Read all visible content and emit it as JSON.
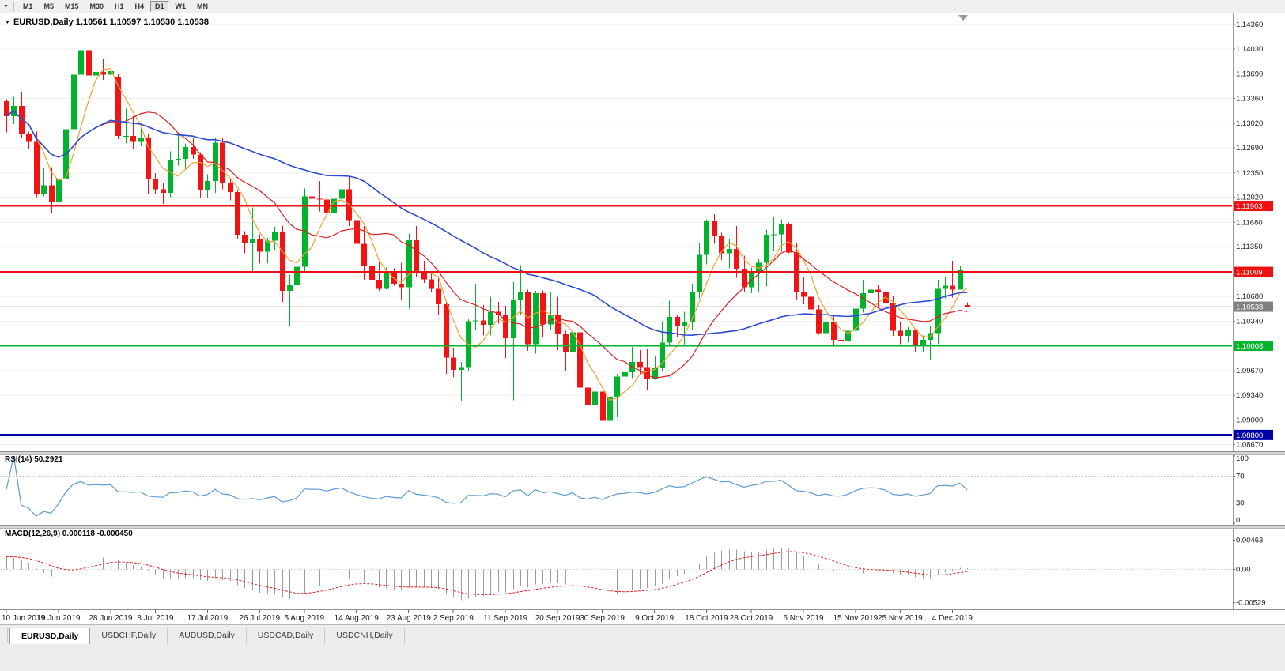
{
  "toolbar": {
    "menu_caret": "▼",
    "timeframes": [
      {
        "label": "M1",
        "active": false
      },
      {
        "label": "M5",
        "active": false
      },
      {
        "label": "M15",
        "active": false
      },
      {
        "label": "M30",
        "active": false
      },
      {
        "label": "H1",
        "active": false
      },
      {
        "label": "H4",
        "active": false
      },
      {
        "label": "D1",
        "active": true
      },
      {
        "label": "W1",
        "active": false
      },
      {
        "label": "MN",
        "active": false
      }
    ]
  },
  "chart_header": {
    "collapse_glyph": "▼",
    "title": "EURUSD,Daily 1.10561 1.10597 1.10530 1.10538"
  },
  "price_axis": {
    "ticks": [
      "1.14360",
      "1.14030",
      "1.13690",
      "1.13360",
      "1.13020",
      "1.12690",
      "1.12350",
      "1.12020",
      "1.11680",
      "1.11350",
      "1.10680",
      "1.10340",
      "1.09670",
      "1.09340",
      "1.09000",
      "1.08670"
    ]
  },
  "hlines": [
    {
      "label": "1.11903",
      "value": 1.11903,
      "color": "#ee1111",
      "width": 2
    },
    {
      "label": "1.11009",
      "value": 1.11009,
      "color": "#ee1111",
      "width": 2
    },
    {
      "label": "1.10008",
      "value": 1.10008,
      "color": "#00b42c",
      "width": 2
    },
    {
      "label": "1.08800",
      "value": 1.088,
      "color": "#0000a8",
      "width": 3
    }
  ],
  "current_price": {
    "label": "1.10538",
    "value": 1.10538,
    "badge_color": "#808080",
    "line_color": "#c0c0c0"
  },
  "rsi_panel": {
    "label": "RSI(14) 50.2921",
    "axis_labels": [
      {
        "text": "100",
        "value": 100
      },
      {
        "text": "70",
        "value": 70
      },
      {
        "text": "30",
        "value": 30
      },
      {
        "text": "0",
        "value": 0
      }
    ],
    "levels": [
      70,
      30
    ]
  },
  "macd_panel": {
    "label": "MACD(12,26,9) 0.000118 -0.000450",
    "axis_labels": [
      {
        "text": "0.00463",
        "value": 0.00463
      },
      {
        "text": "0.00",
        "value": 0
      },
      {
        "text": "-0.00529",
        "value": -0.00529
      }
    ]
  },
  "date_axis": {
    "labels": [
      {
        "index": 0,
        "text": "10 Jun 2019"
      },
      {
        "index": 7,
        "text": "19 Jun 2019"
      },
      {
        "index": 14,
        "text": "28 Jun 2019"
      },
      {
        "index": 20,
        "text": "8 Jul 2019"
      },
      {
        "index": 27,
        "text": "17 Jul 2019"
      },
      {
        "index": 34,
        "text": "26 Jul 2019"
      },
      {
        "index": 40,
        "text": "5 Aug 2019"
      },
      {
        "index": 47,
        "text": "14 Aug 2019"
      },
      {
        "index": 54,
        "text": "23 Aug 2019"
      },
      {
        "index": 60,
        "text": "2 Sep 2019"
      },
      {
        "index": 67,
        "text": "11 Sep 2019"
      },
      {
        "index": 74,
        "text": "20 Sep 2019"
      },
      {
        "index": 80,
        "text": "30 Sep 2019"
      },
      {
        "index": 87,
        "text": "9 Oct 2019"
      },
      {
        "index": 94,
        "text": "18 Oct 2019"
      },
      {
        "index": 100,
        "text": "28 Oct 2019"
      },
      {
        "index": 107,
        "text": "6 Nov 2019"
      },
      {
        "index": 114,
        "text": "15 Nov 2019"
      },
      {
        "index": 120,
        "text": "25 Nov 2019"
      },
      {
        "index": 127,
        "text": "4 Dec 2019"
      }
    ]
  },
  "bottom_tabs": [
    {
      "label": "EURUSD,Daily",
      "active": true
    },
    {
      "label": "USDCHF,Daily",
      "active": false
    },
    {
      "label": "AUDUSD,Daily",
      "active": false
    },
    {
      "label": "USDCAD,Daily",
      "active": false
    },
    {
      "label": "USDCNH,Daily",
      "active": false
    }
  ],
  "colors": {
    "candle_up": "#00b32c",
    "candle_down": "#f21414",
    "ma_fast": "#efa131",
    "ma_mid": "#e02020",
    "ma_slow": "#2d4bd1",
    "rsi_line": "#5b9bd5",
    "macd_hist": "#9a9a9a",
    "macd_signal": "#e02020",
    "grid": "#f0f0f0",
    "axis_border": "#9a9a9a"
  },
  "chart_data": {
    "type": "candlestick",
    "symbol": "EURUSD",
    "timeframe": "Daily",
    "last_bar": {
      "open": "1.10561",
      "high": "1.10597",
      "low": "1.10530",
      "close": "1.10538"
    },
    "support_resistance": [
      1.11903,
      1.11009,
      1.10008,
      1.088
    ],
    "moving_averages": [
      {
        "name": "fast",
        "method": "sma",
        "period": 5,
        "color_key": "ma_fast"
      },
      {
        "name": "mid",
        "method": "sma",
        "period": 13,
        "color_key": "ma_mid"
      },
      {
        "name": "slow",
        "method": "sma",
        "period": 40,
        "color_key": "ma_slow"
      }
    ],
    "rsi": {
      "period": 14,
      "current": "50.2921",
      "levels": [
        70,
        30
      ]
    },
    "macd": {
      "fast": 12,
      "slow": 26,
      "signal": 9,
      "current_main": "0.000118",
      "current_signal": "-0.000450"
    },
    "price_range": {
      "max": 1.1451,
      "min": 1.0859
    },
    "candles": [
      [
        "10 Jun",
        1.1332,
        1.1335,
        1.129,
        1.1312
      ],
      [
        "11 Jun",
        1.1312,
        1.1338,
        1.1301,
        1.1326
      ],
      [
        "12 Jun",
        1.1326,
        1.1344,
        1.1282,
        1.1288
      ],
      [
        "13 Jun",
        1.1288,
        1.1291,
        1.1267,
        1.1277
      ],
      [
        "14 Jun",
        1.1277,
        1.1291,
        1.1202,
        1.1207
      ],
      [
        "17 Jun",
        1.1207,
        1.1242,
        1.1203,
        1.1218
      ],
      [
        "18 Jun",
        1.1218,
        1.1243,
        1.1181,
        1.1195
      ],
      [
        "19 Jun",
        1.1195,
        1.1255,
        1.1187,
        1.1227
      ],
      [
        "20 Jun",
        1.1227,
        1.1317,
        1.1226,
        1.1294
      ],
      [
        "21 Jun",
        1.1294,
        1.1378,
        1.1287,
        1.1368
      ],
      [
        "24 Jun",
        1.1368,
        1.1406,
        1.1363,
        1.1401
      ],
      [
        "25 Jun",
        1.1401,
        1.1412,
        1.1344,
        1.1367
      ],
      [
        "26 Jun",
        1.1367,
        1.1391,
        1.1349,
        1.1372
      ],
      [
        "27 Jun",
        1.1372,
        1.1389,
        1.1361,
        1.1368
      ],
      [
        "28 Jun",
        1.1368,
        1.1391,
        1.1358,
        1.1373
      ],
      [
        "1 Jul",
        1.1365,
        1.1369,
        1.1281,
        1.1285
      ],
      [
        "2 Jul",
        1.1285,
        1.1322,
        1.1275,
        1.1285
      ],
      [
        "3 Jul",
        1.1285,
        1.1312,
        1.1268,
        1.1277
      ],
      [
        "4 Jul",
        1.1277,
        1.1295,
        1.1271,
        1.1283
      ],
      [
        "5 Jul",
        1.1283,
        1.1287,
        1.1207,
        1.1226
      ],
      [
        "8 Jul",
        1.1226,
        1.1235,
        1.1207,
        1.1213
      ],
      [
        "9 Jul",
        1.1213,
        1.1222,
        1.1193,
        1.1208
      ],
      [
        "10 Jul",
        1.1208,
        1.1264,
        1.1202,
        1.1252
      ],
      [
        "11 Jul",
        1.1252,
        1.1286,
        1.1245,
        1.1254
      ],
      [
        "12 Jul",
        1.1254,
        1.1275,
        1.1239,
        1.127
      ],
      [
        "15 Jul",
        1.127,
        1.1282,
        1.1254,
        1.126
      ],
      [
        "16 Jul",
        1.126,
        1.1263,
        1.1201,
        1.1211
      ],
      [
        "17 Jul",
        1.1211,
        1.1233,
        1.1201,
        1.1224
      ],
      [
        "18 Jul",
        1.1224,
        1.1283,
        1.1208,
        1.1276
      ],
      [
        "19 Jul",
        1.1276,
        1.1283,
        1.1213,
        1.1221
      ],
      [
        "22 Jul",
        1.1221,
        1.1227,
        1.1198,
        1.1209
      ],
      [
        "23 Jul",
        1.1209,
        1.1211,
        1.1146,
        1.1151
      ],
      [
        "24 Jul",
        1.1151,
        1.1156,
        1.1126,
        1.114
      ],
      [
        "25 Jul",
        1.114,
        1.1188,
        1.1101,
        1.1146
      ],
      [
        "26 Jul",
        1.1146,
        1.1152,
        1.1112,
        1.1128
      ],
      [
        "29 Jul",
        1.1128,
        1.1147,
        1.1112,
        1.1143
      ],
      [
        "30 Jul",
        1.1143,
        1.1162,
        1.1131,
        1.1155
      ],
      [
        "31 Jul",
        1.1155,
        1.1163,
        1.106,
        1.1075
      ],
      [
        "1 Aug",
        1.1075,
        1.1097,
        1.1027,
        1.1084
      ],
      [
        "2 Aug",
        1.1084,
        1.1116,
        1.1073,
        1.1108
      ],
      [
        "5 Aug",
        1.1108,
        1.1214,
        1.1101,
        1.1203
      ],
      [
        "6 Aug",
        1.1203,
        1.1249,
        1.1166,
        1.12
      ],
      [
        "7 Aug",
        1.12,
        1.1224,
        1.1183,
        1.1199
      ],
      [
        "8 Aug",
        1.1199,
        1.1234,
        1.1177,
        1.118
      ],
      [
        "9 Aug",
        1.118,
        1.1223,
        1.1178,
        1.12
      ],
      [
        "12 Aug",
        1.12,
        1.123,
        1.1161,
        1.1213
      ],
      [
        "13 Aug",
        1.1213,
        1.123,
        1.1163,
        1.1171
      ],
      [
        "14 Aug",
        1.1171,
        1.1192,
        1.113,
        1.1139
      ],
      [
        "15 Aug",
        1.1139,
        1.1163,
        1.109,
        1.1109
      ],
      [
        "16 Aug",
        1.1109,
        1.1114,
        1.1066,
        1.109
      ],
      [
        "19 Aug",
        1.109,
        1.1114,
        1.1075,
        1.1078
      ],
      [
        "20 Aug",
        1.1078,
        1.1107,
        1.1077,
        1.1099
      ],
      [
        "21 Aug",
        1.1099,
        1.1106,
        1.1082,
        1.1085
      ],
      [
        "22 Aug",
        1.1085,
        1.1113,
        1.1063,
        1.108
      ],
      [
        "23 Aug",
        1.108,
        1.1153,
        1.1051,
        1.1144
      ],
      [
        "26 Aug",
        1.1144,
        1.1163,
        1.1094,
        1.1101
      ],
      [
        "27 Aug",
        1.1101,
        1.1116,
        1.1086,
        1.1091
      ],
      [
        "28 Aug",
        1.1091,
        1.1098,
        1.1073,
        1.1078
      ],
      [
        "29 Aug",
        1.1078,
        1.1094,
        1.1042,
        1.1057
      ],
      [
        "30 Aug",
        1.1057,
        1.1062,
        1.0963,
        1.0985
      ],
      [
        "2 Sep",
        1.0985,
        1.0998,
        1.0958,
        1.0968
      ],
      [
        "3 Sep",
        1.0968,
        1.0979,
        1.0926,
        1.0972
      ],
      [
        "4 Sep",
        1.0972,
        1.1037,
        1.0966,
        1.1034
      ],
      [
        "5 Sep",
        1.1034,
        1.1085,
        1.1022,
        1.1035
      ],
      [
        "6 Sep",
        1.1035,
        1.1056,
        1.1015,
        1.1029
      ],
      [
        "9 Sep",
        1.1029,
        1.1067,
        1.1015,
        1.1047
      ],
      [
        "10 Sep",
        1.1047,
        1.106,
        1.1031,
        1.1043
      ],
      [
        "11 Sep",
        1.1043,
        1.1055,
        1.0984,
        1.1011
      ],
      [
        "12 Sep",
        1.1011,
        1.1087,
        1.0927,
        1.1063
      ],
      [
        "13 Sep",
        1.1063,
        1.111,
        1.1042,
        1.1074
      ],
      [
        "16 Sep",
        1.1074,
        1.1077,
        1.0994,
        1.1003
      ],
      [
        "17 Sep",
        1.1003,
        1.1075,
        1.099,
        1.1072
      ],
      [
        "18 Sep",
        1.1072,
        1.1076,
        1.1012,
        1.103
      ],
      [
        "19 Sep",
        1.103,
        1.1073,
        1.1022,
        1.1042
      ],
      [
        "20 Sep",
        1.1042,
        1.1067,
        1.0995,
        1.1017
      ],
      [
        "23 Sep",
        1.1017,
        1.1021,
        1.0966,
        1.0992
      ],
      [
        "24 Sep",
        1.0992,
        1.1023,
        1.0982,
        1.1019
      ],
      [
        "25 Sep",
        1.1019,
        1.1022,
        1.094,
        1.0944
      ],
      [
        "26 Sep",
        1.0944,
        1.0965,
        1.0909,
        1.0921
      ],
      [
        "27 Sep",
        1.0921,
        1.0957,
        1.0905,
        1.0939
      ],
      [
        "30 Sep",
        1.0939,
        1.0949,
        1.0885,
        1.0899
      ],
      [
        "1 Oct",
        1.0899,
        1.094,
        1.0879,
        1.0932
      ],
      [
        "2 Oct",
        1.0932,
        1.0963,
        1.0904,
        1.0959
      ],
      [
        "3 Oct",
        1.0959,
        1.0999,
        1.0941,
        1.0965
      ],
      [
        "4 Oct",
        1.0965,
        1.0999,
        1.0957,
        1.0979
      ],
      [
        "7 Oct",
        1.0979,
        1.0995,
        1.0962,
        1.0972
      ],
      [
        "8 Oct",
        1.0972,
        1.0996,
        1.0941,
        1.0956
      ],
      [
        "9 Oct",
        1.0956,
        1.0987,
        1.0955,
        1.0971
      ],
      [
        "10 Oct",
        1.0971,
        1.1034,
        1.0966,
        1.1005
      ],
      [
        "11 Oct",
        1.1005,
        1.1062,
        1.1002,
        1.104
      ],
      [
        "14 Oct",
        1.104,
        1.1043,
        1.1013,
        1.1027
      ],
      [
        "15 Oct",
        1.1027,
        1.1047,
        1.1001,
        1.1033
      ],
      [
        "16 Oct",
        1.1033,
        1.1085,
        1.1023,
        1.1073
      ],
      [
        "17 Oct",
        1.1073,
        1.114,
        1.1065,
        1.1124
      ],
      [
        "18 Oct",
        1.1124,
        1.1172,
        1.1111,
        1.117
      ],
      [
        "21 Oct",
        1.117,
        1.1179,
        1.1139,
        1.1149
      ],
      [
        "22 Oct",
        1.1149,
        1.1154,
        1.1117,
        1.1126
      ],
      [
        "23 Oct",
        1.1126,
        1.1145,
        1.1106,
        1.1132
      ],
      [
        "24 Oct",
        1.1132,
        1.1163,
        1.1093,
        1.1105
      ],
      [
        "25 Oct",
        1.1105,
        1.1123,
        1.1073,
        1.108
      ],
      [
        "28 Oct",
        1.108,
        1.1107,
        1.1072,
        1.11
      ],
      [
        "29 Oct",
        1.11,
        1.1118,
        1.1073,
        1.1113
      ],
      [
        "30 Oct",
        1.1113,
        1.1158,
        1.1081,
        1.1151
      ],
      [
        "31 Oct",
        1.1151,
        1.1175,
        1.1129,
        1.1152
      ],
      [
        "1 Nov",
        1.1152,
        1.1172,
        1.1128,
        1.1166
      ],
      [
        "4 Nov",
        1.1166,
        1.1168,
        1.1126,
        1.1127
      ],
      [
        "5 Nov",
        1.1127,
        1.114,
        1.1063,
        1.1074
      ],
      [
        "6 Nov",
        1.1074,
        1.1094,
        1.1057,
        1.1067
      ],
      [
        "7 Nov",
        1.1067,
        1.1092,
        1.1035,
        1.105
      ],
      [
        "8 Nov",
        1.105,
        1.1056,
        1.1016,
        1.1018
      ],
      [
        "11 Nov",
        1.1018,
        1.1043,
        1.1016,
        1.1033
      ],
      [
        "12 Nov",
        1.1033,
        1.1042,
        1.1002,
        1.1009
      ],
      [
        "13 Nov",
        1.1009,
        1.1019,
        1.0994,
        1.1007
      ],
      [
        "14 Nov",
        1.1007,
        1.1027,
        1.0989,
        1.1021
      ],
      [
        "15 Nov",
        1.1021,
        1.1058,
        1.1014,
        1.1051
      ],
      [
        "18 Nov",
        1.1051,
        1.109,
        1.1046,
        1.1072
      ],
      [
        "19 Nov",
        1.1072,
        1.1085,
        1.1064,
        1.1077
      ],
      [
        "20 Nov",
        1.1077,
        1.1083,
        1.1052,
        1.1074
      ],
      [
        "21 Nov",
        1.1074,
        1.1097,
        1.1052,
        1.1059
      ],
      [
        "22 Nov",
        1.1059,
        1.1068,
        1.1014,
        1.1021
      ],
      [
        "25 Nov",
        1.1021,
        1.1034,
        1.1003,
        1.1014
      ],
      [
        "26 Nov",
        1.1014,
        1.1026,
        1.1005,
        1.1022
      ],
      [
        "27 Nov",
        1.1022,
        1.1024,
        1.0992,
        1.1001
      ],
      [
        "28 Nov",
        1.1001,
        1.1015,
        1.0993,
        1.1009
      ],
      [
        "29 Nov",
        1.1009,
        1.1028,
        1.0981,
        1.1018
      ],
      [
        "2 Dec",
        1.1018,
        1.109,
        1.1003,
        1.1078
      ],
      [
        "3 Dec",
        1.1078,
        1.1094,
        1.1065,
        1.1082
      ],
      [
        "4 Dec",
        1.1082,
        1.1116,
        1.1066,
        1.1077
      ],
      [
        "5 Dec",
        1.1077,
        1.1109,
        1.1077,
        1.1104
      ],
      [
        "6 Dec",
        1.10561,
        1.10597,
        1.1053,
        1.10538
      ]
    ]
  }
}
